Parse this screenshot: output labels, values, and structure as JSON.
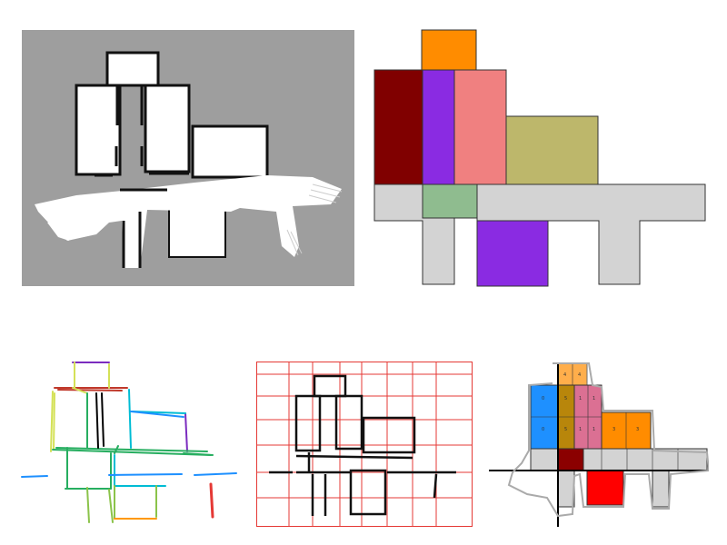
{
  "panels": {
    "occupancy_map": {
      "background": "#9e9e9e",
      "free": "#ffffff",
      "wall": "#111111"
    },
    "room_segmentation": {
      "outline": "#333333",
      "rooms": [
        {
          "name": "orange-room",
          "color": "#ff8c00"
        },
        {
          "name": "maroon-room",
          "color": "#800000"
        },
        {
          "name": "violet-room",
          "color": "#8a2be2"
        },
        {
          "name": "salmon-room",
          "color": "#f08080"
        },
        {
          "name": "khaki-room",
          "color": "#bdb76b"
        },
        {
          "name": "corridor",
          "color": "#d3d3d3"
        },
        {
          "name": "green-room",
          "color": "#8fbc8f"
        },
        {
          "name": "violet-lower-room",
          "color": "#8a2be2"
        }
      ]
    },
    "line_segments": {
      "colors": [
        "#7b2cbf",
        "#c0392b",
        "#27ae60",
        "#d4e157",
        "#1e90ff",
        "#00bcd4",
        "#ff9800",
        "#e53935",
        "#000000"
      ]
    },
    "grid_lines": {
      "grid_color": "#e53935",
      "line_color": "#111111"
    },
    "cell_decomposition": {
      "cell_labels": [
        "4",
        "4",
        "0",
        "5",
        "1",
        "1",
        "0",
        "5",
        "1",
        "1",
        "3",
        "3"
      ],
      "colors": {
        "blue": "#1e90ff",
        "orange": "#ff8c00",
        "gold": "#b8860b",
        "pink": "#db7093",
        "maroon": "#8b0000",
        "red": "#ff0000",
        "gray": "#d3d3d3",
        "outline": "#aaaaaa"
      }
    }
  }
}
